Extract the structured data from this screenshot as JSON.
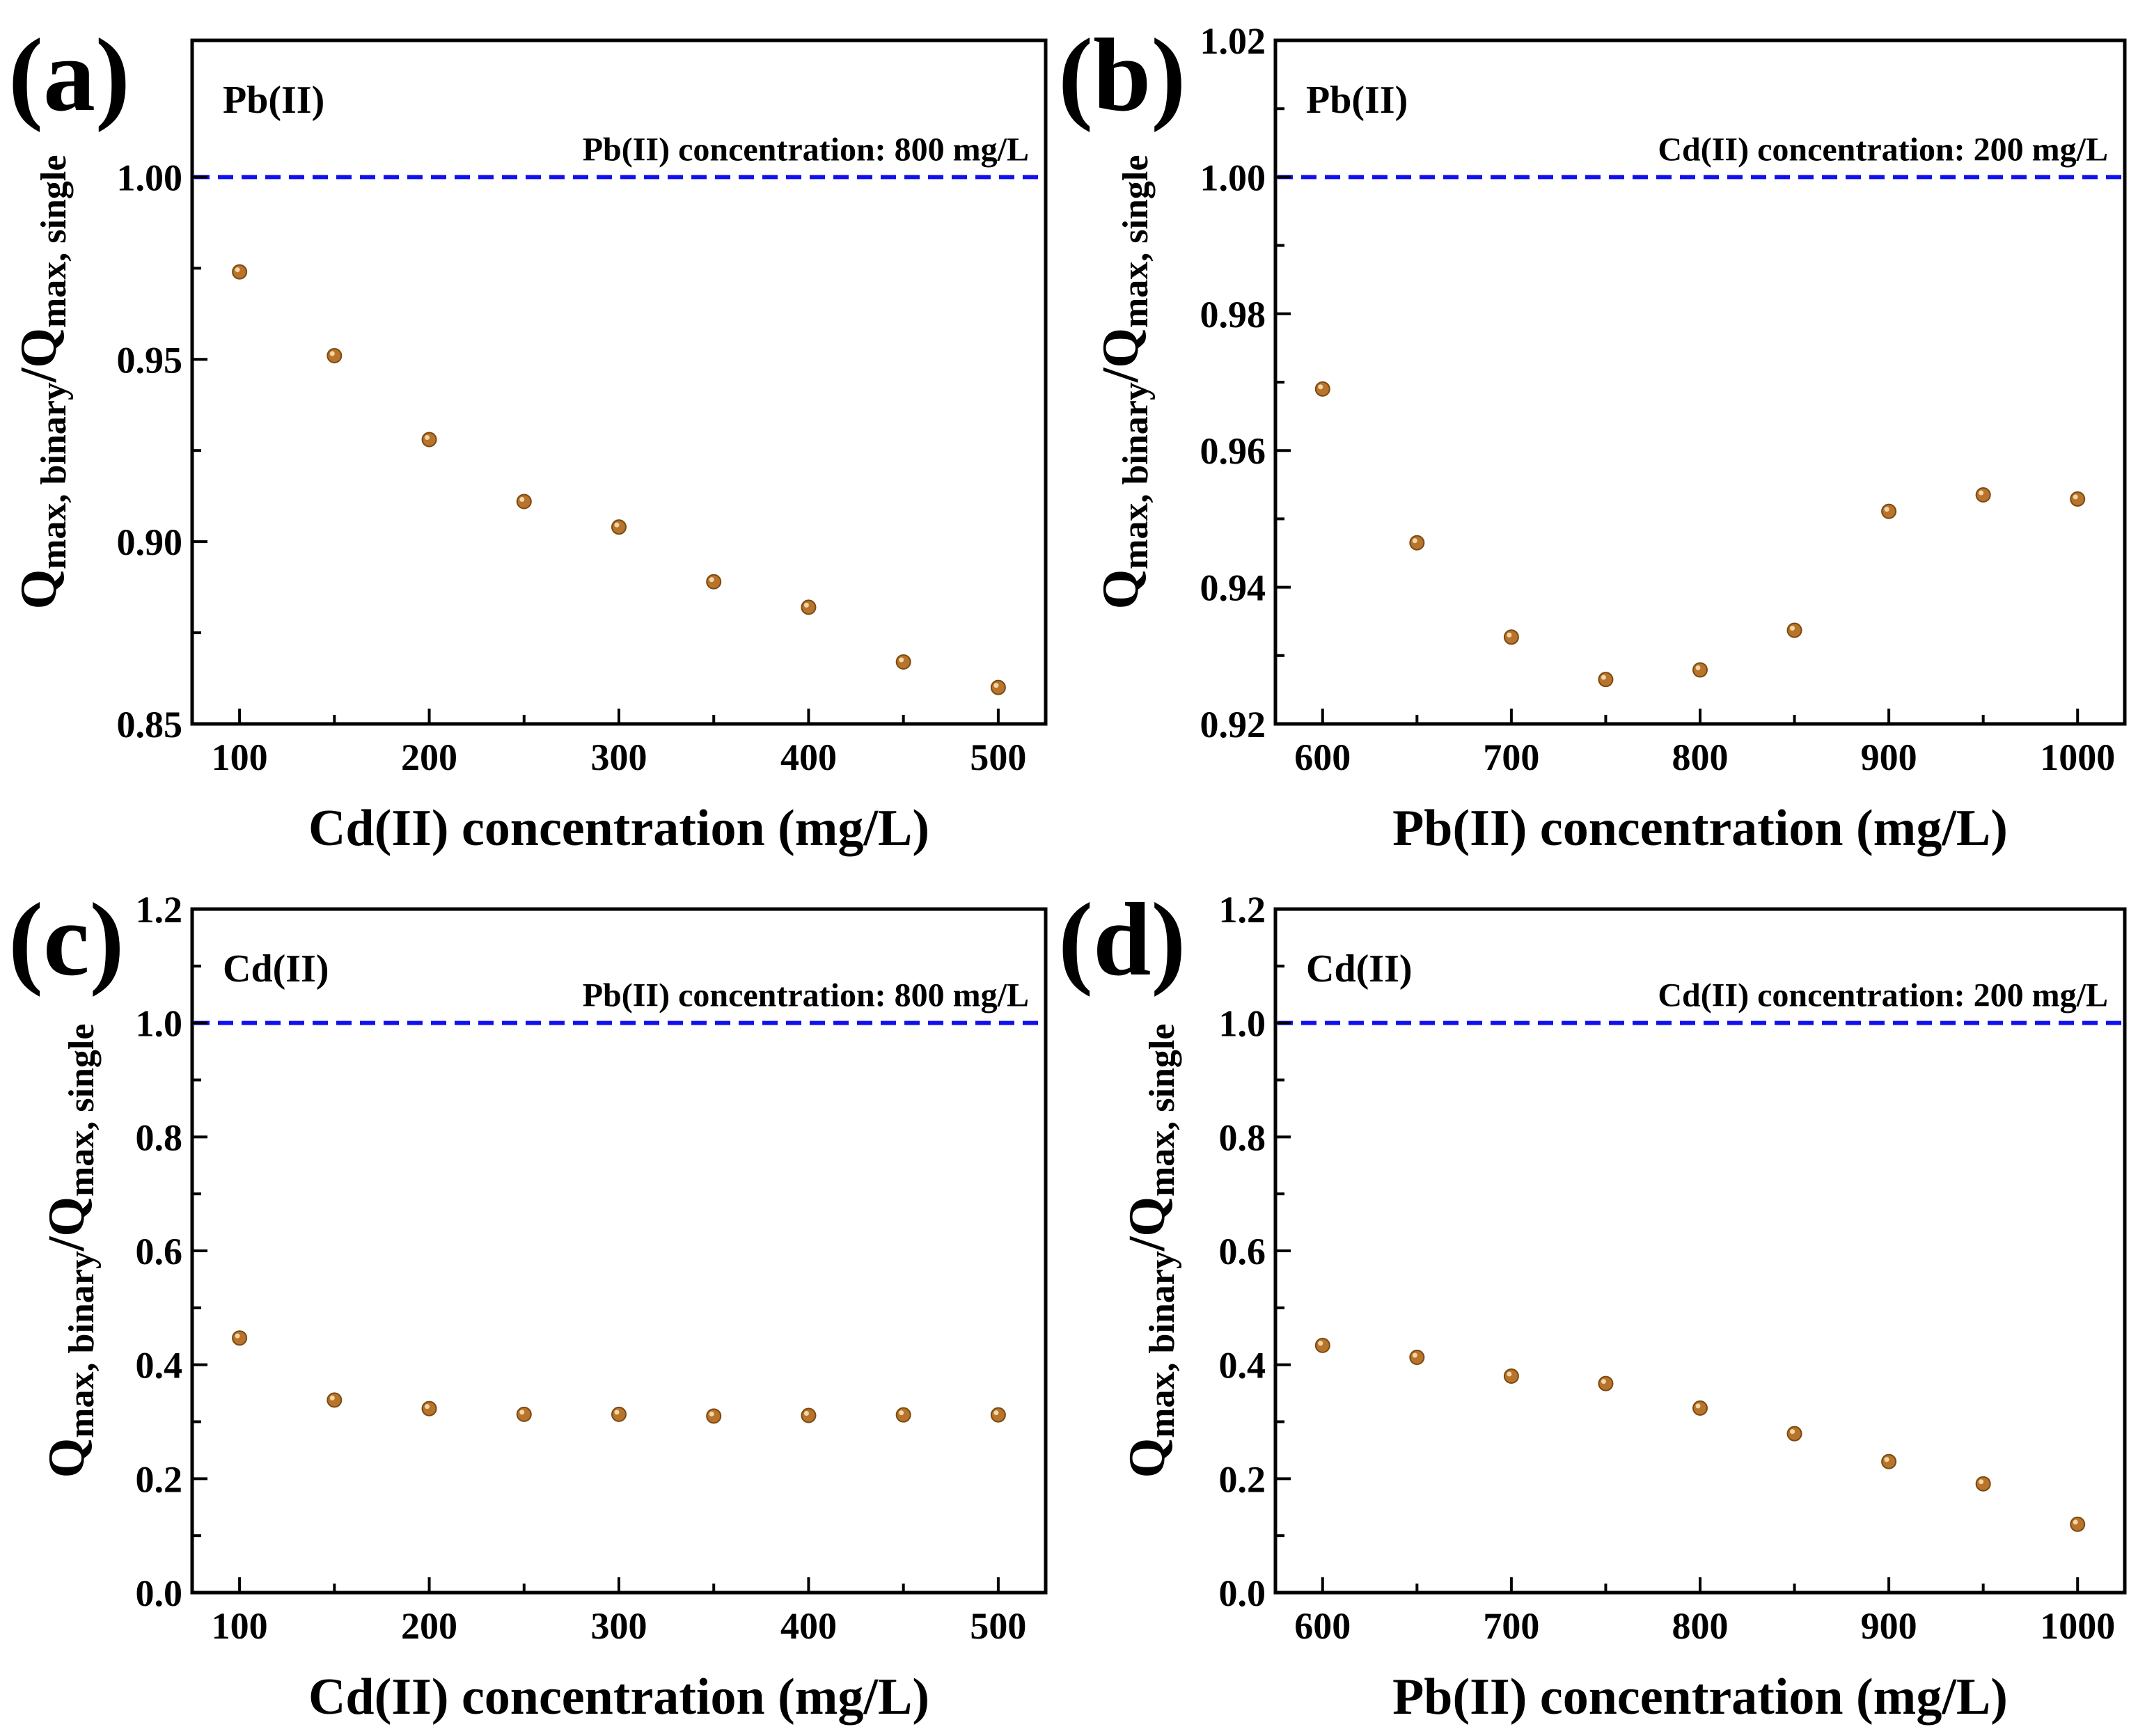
{
  "figure": {
    "colors": {
      "marker": "#B8742A",
      "marker_edge": "#7A4A14",
      "reference": "#1010EE",
      "axes": "#000000"
    }
  },
  "chart_data": [
    {
      "panel": "(a)",
      "type": "scatter",
      "species": "Pb(II)",
      "reference_line": {
        "y": 1.0,
        "label": "Pb(II) concentration: 800 mg/L",
        "style": "dashed"
      },
      "xlabel": "Cd(II) concentration (mg/L)",
      "ylabel": {
        "Q1": "Q",
        "sub1": "max, binary",
        "slash": "/",
        "Q2": "Q",
        "sub2": "max, single"
      },
      "xlim": [
        75,
        525
      ],
      "ylim": [
        0.85,
        1.0375
      ],
      "xticks": [
        100,
        200,
        300,
        400,
        500
      ],
      "xtick_labels": [
        "100",
        "200",
        "300",
        "400",
        "500"
      ],
      "yticks": [
        0.85,
        0.9,
        0.95,
        1.0
      ],
      "ytick_labels": [
        "0.85",
        "0.90",
        "0.95",
        "1.00"
      ],
      "x": [
        100,
        150,
        200,
        250,
        300,
        350,
        400,
        450,
        500
      ],
      "y": [
        0.974,
        0.951,
        0.928,
        0.911,
        0.904,
        0.889,
        0.882,
        0.867,
        0.86
      ]
    },
    {
      "panel": "(b)",
      "type": "scatter",
      "species": "Pb(II)",
      "reference_line": {
        "y": 1.0,
        "label": "Cd(II) concentration: 200 mg/L",
        "style": "dashed"
      },
      "xlabel": "Pb(II) concentration (mg/L)",
      "ylabel": {
        "Q1": "Q",
        "sub1": "max, binary",
        "slash": "/",
        "Q2": "Q",
        "sub2": "max, single"
      },
      "xlim": [
        575,
        1025
      ],
      "ylim": [
        0.92,
        1.02
      ],
      "xticks": [
        600,
        700,
        800,
        900,
        1000
      ],
      "xtick_labels": [
        "600",
        "700",
        "800",
        "900",
        "1000"
      ],
      "yticks": [
        0.92,
        0.94,
        0.96,
        0.98,
        1.0,
        1.02
      ],
      "ytick_labels": [
        "0.92",
        "0.94",
        "0.96",
        "0.98",
        "1.00",
        "1.02"
      ],
      "x": [
        600,
        650,
        700,
        750,
        800,
        850,
        900,
        950,
        1000
      ],
      "y": [
        0.969,
        0.9465,
        0.9327,
        0.9265,
        0.9279,
        0.9337,
        0.9511,
        0.9535,
        0.9529
      ]
    },
    {
      "panel": "(c)",
      "type": "scatter",
      "species": "Cd(II)",
      "reference_line": {
        "y": 1.0,
        "label": "Pb(II) concentration: 800 mg/L",
        "style": "dashed"
      },
      "xlabel": "Cd(II) concentration (mg/L)",
      "ylabel": {
        "Q1": "Q",
        "sub1": "max, binary",
        "slash": "/",
        "Q2": "Q",
        "sub2": "max, single"
      },
      "xlim": [
        75,
        525
      ],
      "ylim": [
        0.0,
        1.2
      ],
      "xticks": [
        100,
        200,
        300,
        400,
        500
      ],
      "xtick_labels": [
        "100",
        "200",
        "300",
        "400",
        "500"
      ],
      "yticks": [
        0.0,
        0.2,
        0.4,
        0.6,
        0.8,
        1.0,
        1.2
      ],
      "ytick_labels": [
        "0.0",
        "0.2",
        "0.4",
        "0.6",
        "0.8",
        "1.0",
        "1.2"
      ],
      "x": [
        100,
        150,
        200,
        250,
        300,
        350,
        400,
        450,
        500
      ],
      "y": [
        0.447,
        0.338,
        0.323,
        0.313,
        0.313,
        0.31,
        0.311,
        0.312,
        0.312
      ]
    },
    {
      "panel": "(d)",
      "type": "scatter",
      "species": "Cd(II)",
      "reference_line": {
        "y": 1.0,
        "label": "Cd(II) concentration: 200 mg/L",
        "style": "dashed"
      },
      "xlabel": "Pb(II) concentration (mg/L)",
      "ylabel": {
        "Q1": "Q",
        "sub1": "max, binary",
        "slash": "/",
        "Q2": "Q",
        "sub2": "max, single"
      },
      "xlim": [
        575,
        1025
      ],
      "ylim": [
        0.0,
        1.2
      ],
      "xticks": [
        600,
        700,
        800,
        900,
        1000
      ],
      "xtick_labels": [
        "600",
        "700",
        "800",
        "900",
        "1000"
      ],
      "yticks": [
        0.0,
        0.2,
        0.4,
        0.6,
        0.8,
        1.0,
        1.2
      ],
      "ytick_labels": [
        "0.0",
        "0.2",
        "0.4",
        "0.6",
        "0.8",
        "1.0",
        "1.2"
      ],
      "x": [
        600,
        650,
        700,
        750,
        800,
        850,
        900,
        950,
        1000
      ],
      "y": [
        0.434,
        0.413,
        0.38,
        0.367,
        0.324,
        0.279,
        0.23,
        0.191,
        0.12
      ]
    }
  ]
}
